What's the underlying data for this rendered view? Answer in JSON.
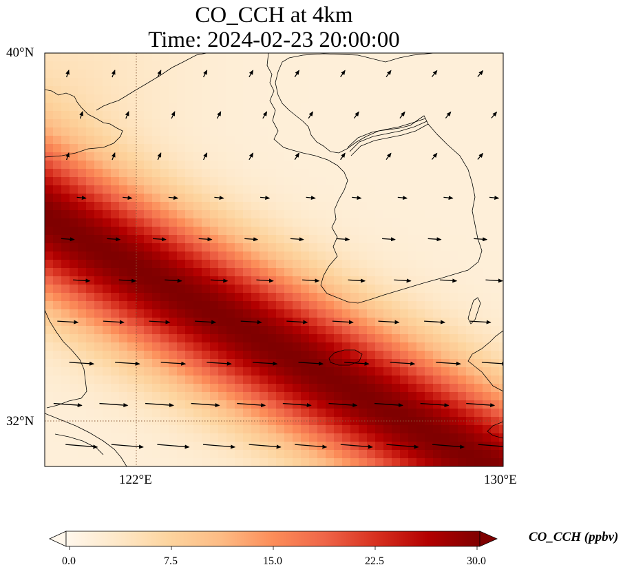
{
  "title": {
    "line1": "CO_CCH at 4km",
    "line2": "Time: 2024-02-23 20:00:00"
  },
  "axes": {
    "lon_min": 120,
    "lon_max": 130,
    "lat_min": 31,
    "lat_max": 40,
    "x_ticks": [
      {
        "value": 122,
        "label": "122°E"
      },
      {
        "value": 130,
        "label": "130°E"
      }
    ],
    "y_ticks": [
      {
        "value": 40,
        "label": "40°N"
      },
      {
        "value": 32,
        "label": "32°N"
      }
    ],
    "gridlines": "dotted at ticks"
  },
  "colorbar": {
    "title": "CO_CCH (ppbv)",
    "colormap": "OrRd",
    "min": 0.0,
    "max": 30.0,
    "ticks": [
      "0.0",
      "7.5",
      "15.0",
      "22.5",
      "30.0"
    ],
    "extend": "both"
  },
  "colors": {
    "cmap": [
      "#fff7ec",
      "#fee8c8",
      "#fdd49e",
      "#fdbb84",
      "#fc8d59",
      "#ef6548",
      "#d7301f",
      "#b30000",
      "#7f0000"
    ]
  },
  "field": {
    "description": "diagonal CO plume band running from northwest to southeast",
    "peak_value": 30,
    "background_value": 2
  },
  "wind_arrows": {
    "note": "wind vectors, mostly westerly in the south and weak/variable in the north"
  }
}
